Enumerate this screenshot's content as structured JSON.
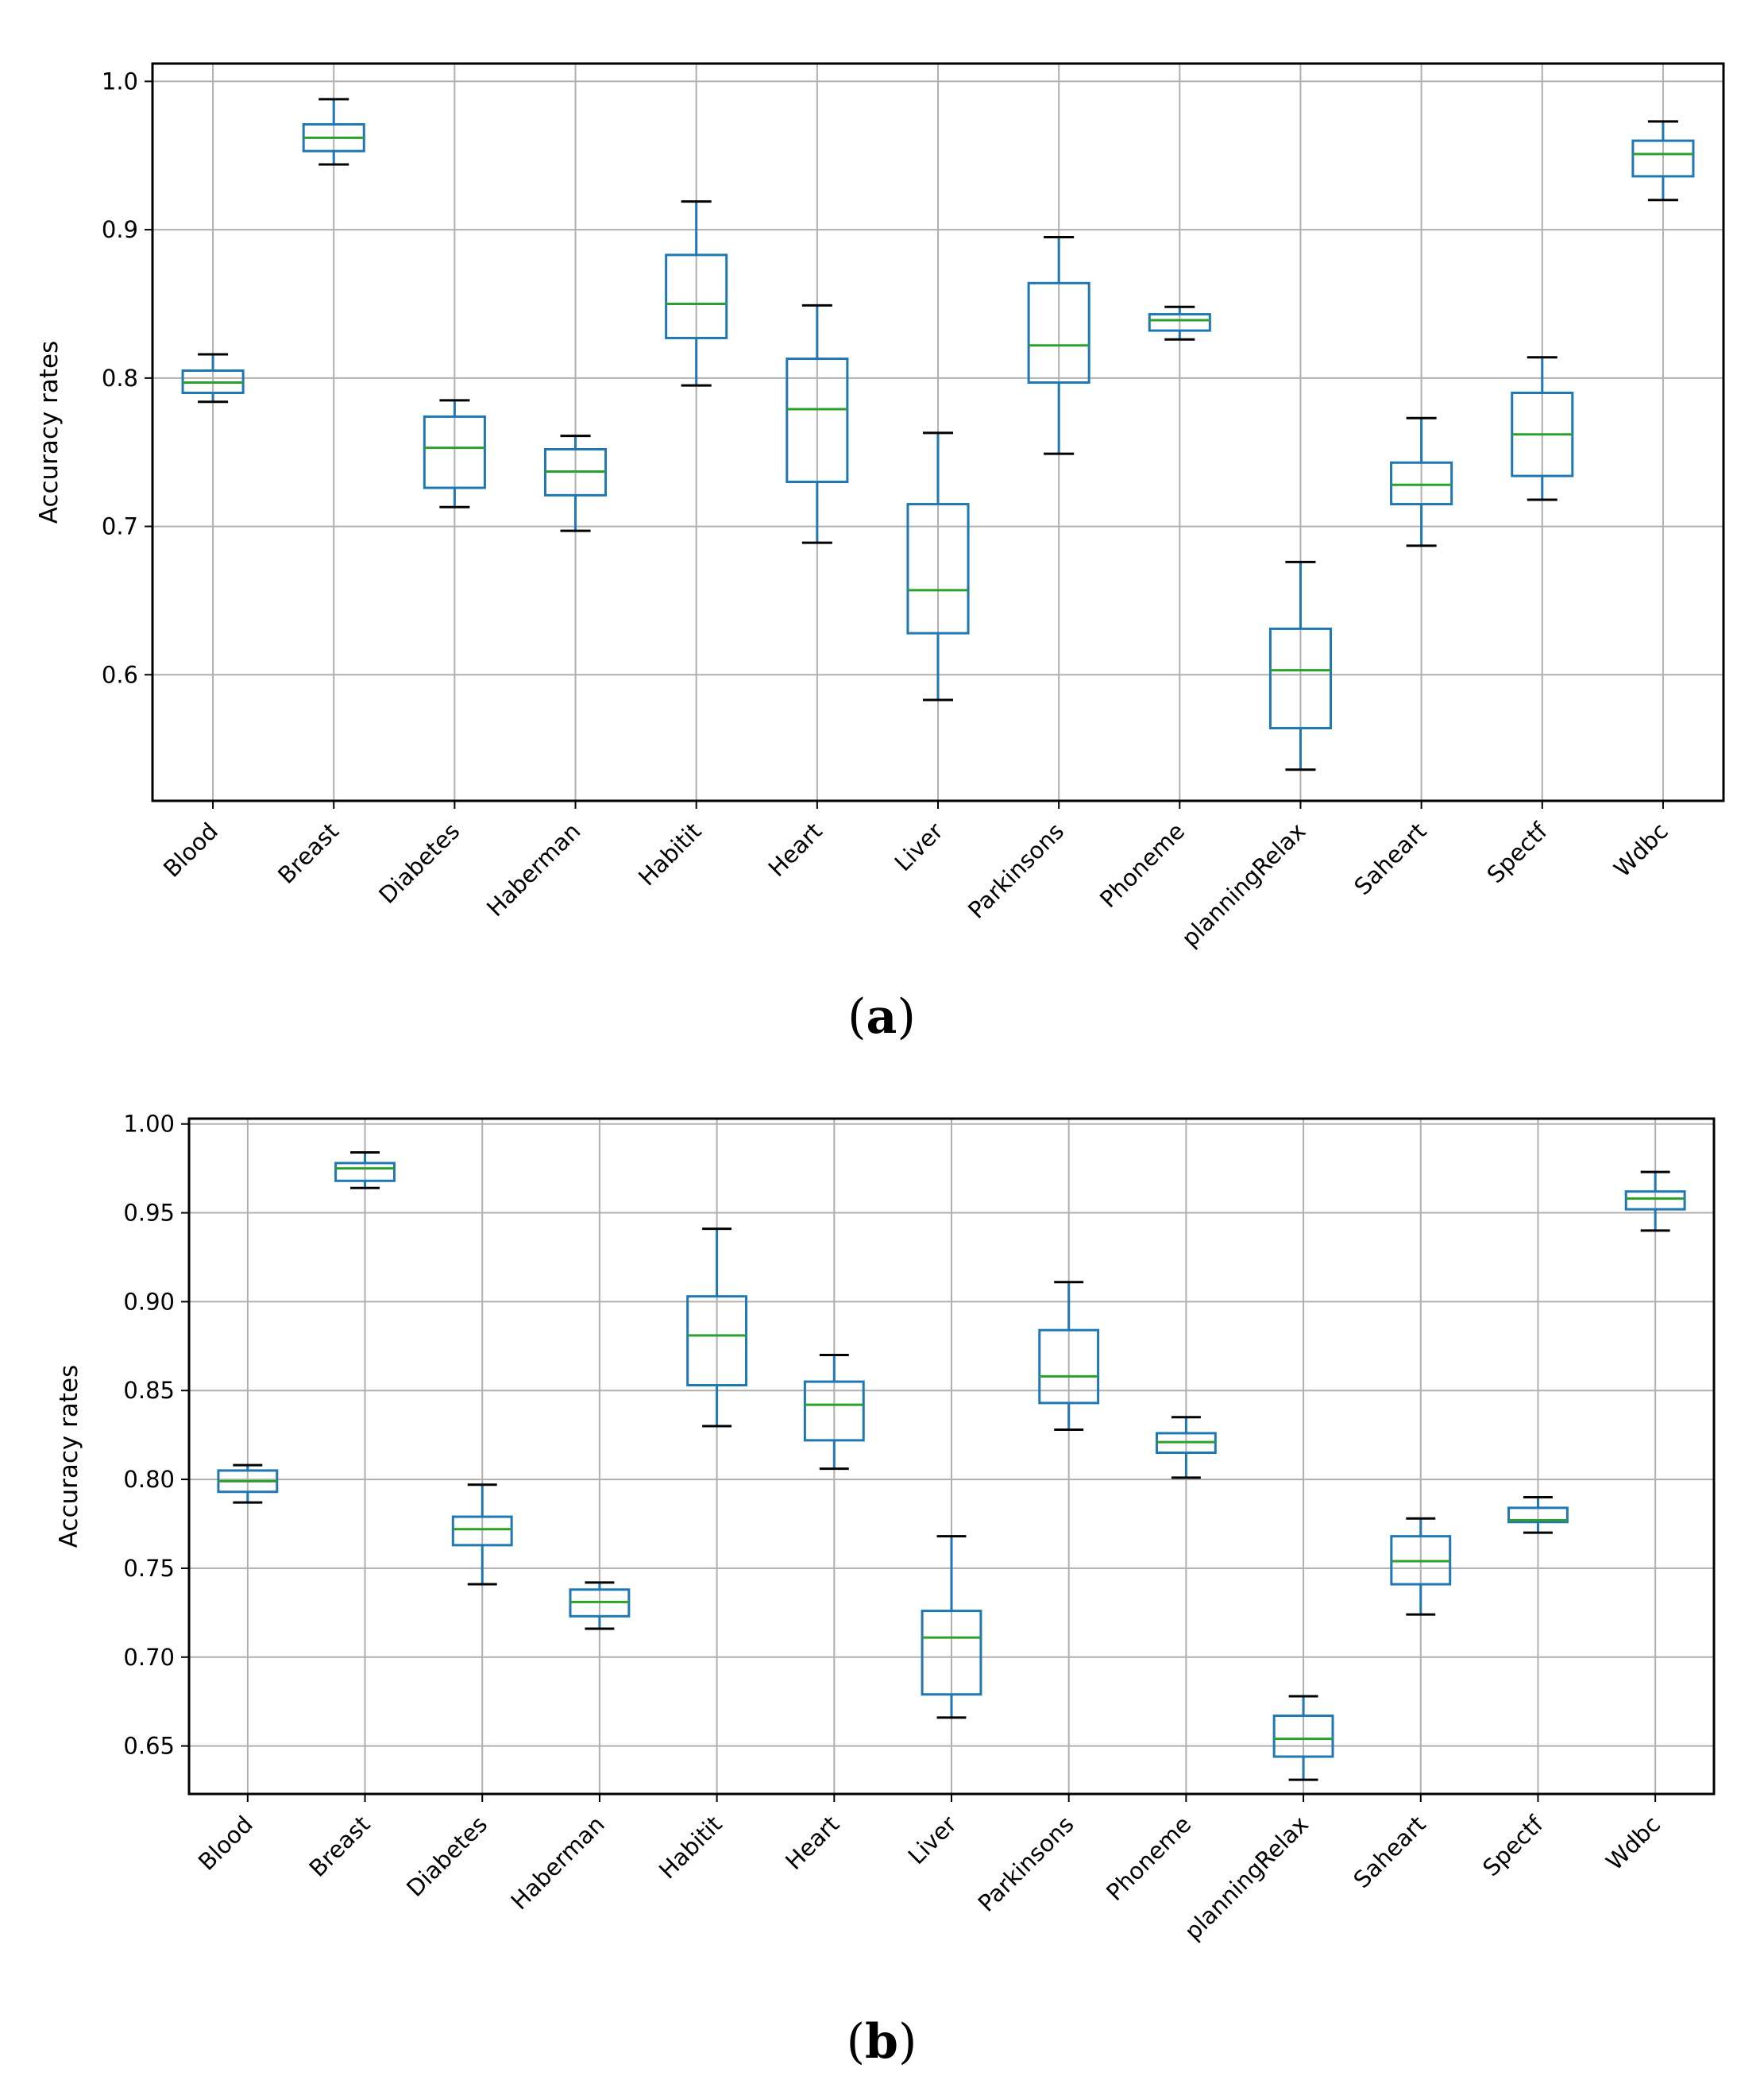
{
  "chart_data": [
    {
      "type": "boxplot",
      "panel_label": "a",
      "ylabel": "Accuracy rates",
      "xlabel": "",
      "ylim": [
        0.515,
        1.012
      ],
      "yticks": [
        0.6,
        0.7,
        0.8,
        0.9,
        1.0
      ],
      "ytick_labels": [
        "0.6",
        "0.7",
        "0.8",
        "0.9",
        "1.0"
      ],
      "grid": true,
      "box_color": "#1f77b4",
      "median_color": "#2ca02c",
      "whisker_cap_color": "#000000",
      "categories": [
        "Blood",
        "Breast",
        "Diabetes",
        "Haberman",
        "Habitit",
        "Heart",
        "Liver",
        "Parkinsons",
        "Phoneme",
        "planningRelax",
        "Saheart",
        "Spectf",
        "Wdbc"
      ],
      "boxes": [
        {
          "whislo": 0.784,
          "q1": 0.79,
          "med": 0.797,
          "q3": 0.805,
          "whishi": 0.816
        },
        {
          "whislo": 0.944,
          "q1": 0.953,
          "med": 0.962,
          "q3": 0.971,
          "whishi": 0.988
        },
        {
          "whislo": 0.713,
          "q1": 0.726,
          "med": 0.753,
          "q3": 0.774,
          "whishi": 0.785
        },
        {
          "whislo": 0.697,
          "q1": 0.721,
          "med": 0.737,
          "q3": 0.752,
          "whishi": 0.761
        },
        {
          "whislo": 0.795,
          "q1": 0.827,
          "med": 0.85,
          "q3": 0.883,
          "whishi": 0.919
        },
        {
          "whislo": 0.689,
          "q1": 0.73,
          "med": 0.779,
          "q3": 0.813,
          "whishi": 0.849
        },
        {
          "whislo": 0.583,
          "q1": 0.628,
          "med": 0.657,
          "q3": 0.715,
          "whishi": 0.763
        },
        {
          "whislo": 0.749,
          "q1": 0.797,
          "med": 0.822,
          "q3": 0.864,
          "whishi": 0.895
        },
        {
          "whislo": 0.826,
          "q1": 0.832,
          "med": 0.839,
          "q3": 0.843,
          "whishi": 0.848
        },
        {
          "whislo": 0.536,
          "q1": 0.564,
          "med": 0.603,
          "q3": 0.631,
          "whishi": 0.676
        },
        {
          "whislo": 0.687,
          "q1": 0.715,
          "med": 0.728,
          "q3": 0.743,
          "whishi": 0.773
        },
        {
          "whislo": 0.718,
          "q1": 0.734,
          "med": 0.762,
          "q3": 0.79,
          "whishi": 0.814
        },
        {
          "whislo": 0.92,
          "q1": 0.936,
          "med": 0.951,
          "q3": 0.96,
          "whishi": 0.973
        }
      ]
    },
    {
      "type": "boxplot",
      "panel_label": "b",
      "ylabel": "Accuracy rates",
      "xlabel": "",
      "ylim": [
        0.623,
        1.003
      ],
      "yticks": [
        0.65,
        0.7,
        0.75,
        0.8,
        0.85,
        0.9,
        0.95,
        1.0
      ],
      "ytick_labels": [
        "0.65",
        "0.70",
        "0.75",
        "0.80",
        "0.85",
        "0.90",
        "0.95",
        "1.00"
      ],
      "grid": true,
      "box_color": "#1f77b4",
      "median_color": "#2ca02c",
      "whisker_cap_color": "#000000",
      "categories": [
        "Blood",
        "Breast",
        "Diabetes",
        "Haberman",
        "Habitit",
        "Heart",
        "Liver",
        "Parkinsons",
        "Phoneme",
        "planningRelax",
        "Saheart",
        "Spectf",
        "Wdbc"
      ],
      "boxes": [
        {
          "whislo": 0.787,
          "q1": 0.793,
          "med": 0.799,
          "q3": 0.805,
          "whishi": 0.808
        },
        {
          "whislo": 0.964,
          "q1": 0.968,
          "med": 0.975,
          "q3": 0.978,
          "whishi": 0.984
        },
        {
          "whislo": 0.741,
          "q1": 0.763,
          "med": 0.772,
          "q3": 0.779,
          "whishi": 0.797
        },
        {
          "whislo": 0.716,
          "q1": 0.723,
          "med": 0.731,
          "q3": 0.738,
          "whishi": 0.742
        },
        {
          "whislo": 0.83,
          "q1": 0.853,
          "med": 0.881,
          "q3": 0.903,
          "whishi": 0.941
        },
        {
          "whislo": 0.806,
          "q1": 0.822,
          "med": 0.842,
          "q3": 0.855,
          "whishi": 0.87
        },
        {
          "whislo": 0.666,
          "q1": 0.679,
          "med": 0.711,
          "q3": 0.726,
          "whishi": 0.768
        },
        {
          "whislo": 0.828,
          "q1": 0.843,
          "med": 0.858,
          "q3": 0.884,
          "whishi": 0.911
        },
        {
          "whislo": 0.801,
          "q1": 0.815,
          "med": 0.821,
          "q3": 0.826,
          "whishi": 0.835
        },
        {
          "whislo": 0.631,
          "q1": 0.644,
          "med": 0.654,
          "q3": 0.667,
          "whishi": 0.678
        },
        {
          "whislo": 0.724,
          "q1": 0.741,
          "med": 0.754,
          "q3": 0.768,
          "whishi": 0.778
        },
        {
          "whislo": 0.77,
          "q1": 0.776,
          "med": 0.777,
          "q3": 0.784,
          "whishi": 0.79
        },
        {
          "whislo": 0.94,
          "q1": 0.952,
          "med": 0.958,
          "q3": 0.962,
          "whishi": 0.973
        }
      ]
    }
  ]
}
